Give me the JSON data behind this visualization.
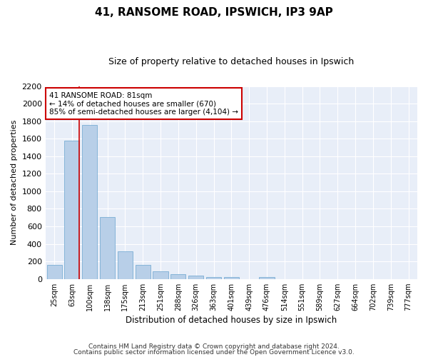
{
  "title1": "41, RANSOME ROAD, IPSWICH, IP3 9AP",
  "title2": "Size of property relative to detached houses in Ipswich",
  "xlabel": "Distribution of detached houses by size in Ipswich",
  "ylabel": "Number of detached properties",
  "categories": [
    "25sqm",
    "63sqm",
    "100sqm",
    "138sqm",
    "175sqm",
    "213sqm",
    "251sqm",
    "288sqm",
    "326sqm",
    "363sqm",
    "401sqm",
    "439sqm",
    "476sqm",
    "514sqm",
    "551sqm",
    "589sqm",
    "627sqm",
    "664sqm",
    "702sqm",
    "739sqm",
    "777sqm"
  ],
  "values": [
    160,
    1580,
    1760,
    710,
    315,
    160,
    90,
    55,
    40,
    25,
    20,
    0,
    20,
    0,
    0,
    0,
    0,
    0,
    0,
    0,
    0
  ],
  "bar_color": "#b8cfe8",
  "bar_edge_color": "#7aadd4",
  "red_line_x": 1.42,
  "annotation_line1": "41 RANSOME ROAD: 81sqm",
  "annotation_line2": "← 14% of detached houses are smaller (670)",
  "annotation_line3": "85% of semi-detached houses are larger (4,104) →",
  "annotation_box_color": "#ffffff",
  "annotation_box_edge_color": "#cc0000",
  "ylim": [
    0,
    2200
  ],
  "yticks": [
    0,
    200,
    400,
    600,
    800,
    1000,
    1200,
    1400,
    1600,
    1800,
    2000,
    2200
  ],
  "bg_color": "#e8eef8",
  "grid_color": "#ffffff",
  "footer1": "Contains HM Land Registry data © Crown copyright and database right 2024.",
  "footer2": "Contains public sector information licensed under the Open Government Licence v3.0."
}
